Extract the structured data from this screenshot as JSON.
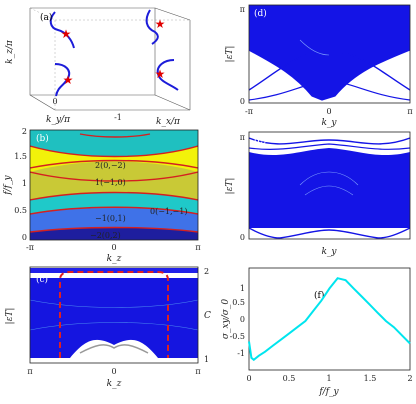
{
  "panels": {
    "a": {
      "tag": "(a)",
      "ylabel": "k_z/π",
      "xlabel_y": "k_y/π",
      "xlabel_x": "k_x/π",
      "ticks": {
        "zero": "0",
        "minus_one": "-1"
      }
    },
    "b": {
      "tag": "(b)",
      "ylabel": "f/f_y",
      "xlabel": "k_z",
      "yticks": [
        "0",
        "0.5",
        "1",
        "1.5",
        "2"
      ],
      "xticks": [
        "-π",
        "0",
        "π"
      ],
      "regions": [
        "2(0,−2)",
        "1(−1,0)",
        "0(−1,−1)",
        "−1(0,1)",
        "−2(0,2)"
      ]
    },
    "c": {
      "tag": "(c)",
      "ylabel": "|εT|",
      "xlabel": "k_z",
      "right_label": "C",
      "right_ticks": [
        "2",
        "1"
      ],
      "xticks": [
        "π",
        "0",
        "π"
      ]
    },
    "d": {
      "tag": "(d)",
      "ylabel": "|εT|",
      "xlabel": "k_y",
      "yticks": [
        "π",
        "0"
      ],
      "xticks": [
        "-π",
        "0",
        "π"
      ]
    },
    "e": {
      "tag": "(e)",
      "ylabel": "|εT|",
      "xlabel": "k_y",
      "yticks": [
        "π",
        "0"
      ]
    },
    "f": {
      "tag": "(f)",
      "ylabel": "σ_xy/σ_0",
      "xlabel": "f/f_y",
      "yticks": [
        "1",
        "0.5",
        "0",
        "-0.5",
        "-1"
      ],
      "xticks": [
        "0",
        "0.5",
        "1",
        "1.5",
        "2"
      ]
    }
  },
  "chart_data": {
    "type": "line",
    "panel": "f",
    "x": [
      0,
      0.03,
      0.06,
      0.12,
      0.2,
      0.3,
      0.4,
      0.5,
      0.6,
      0.7,
      0.8,
      0.9,
      1.0,
      1.1,
      1.2,
      1.3,
      1.4,
      1.5,
      1.6,
      1.7,
      1.8,
      1.9,
      2.0
    ],
    "series": [
      {
        "values": [
          -0.55,
          -0.95,
          -1.0,
          -0.9,
          -0.8,
          -0.65,
          -0.5,
          -0.35,
          -0.2,
          -0.05,
          0.2,
          0.45,
          0.75,
          1.0,
          0.95,
          0.75,
          0.55,
          0.35,
          0.15,
          -0.05,
          -0.2,
          -0.4,
          -0.6
        ]
      }
    ],
    "xlim": [
      0,
      2
    ],
    "ylim": [
      -1.2,
      1.2
    ],
    "colors": {
      "line": "#00e5ee"
    }
  }
}
